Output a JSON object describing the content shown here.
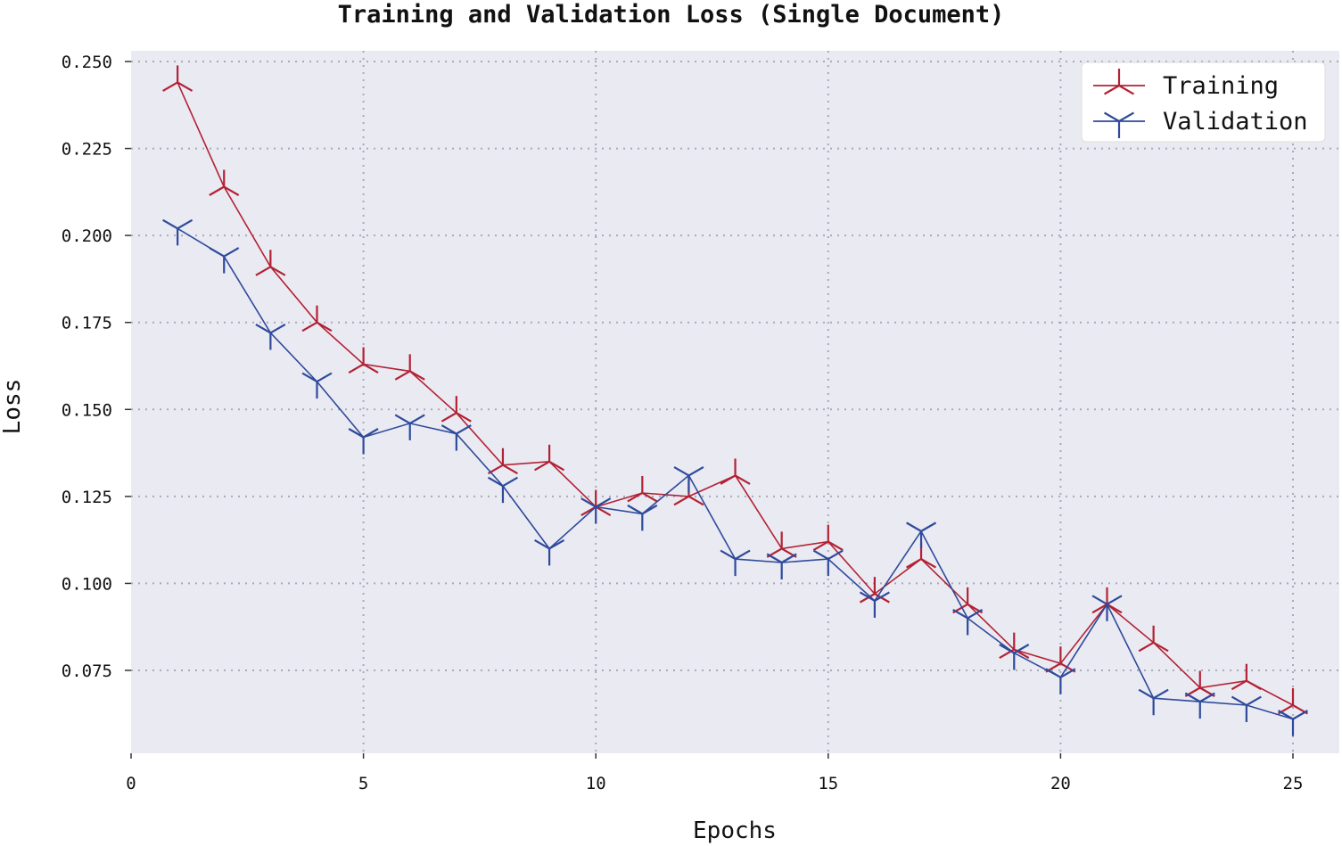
{
  "chart_data": {
    "type": "line",
    "title": "Training and Validation Loss (Single Document)",
    "xlabel": "Epochs",
    "ylabel": "Loss",
    "xlim": [
      0,
      26
    ],
    "ylim": [
      0.055,
      0.252
    ],
    "xticks": [
      0,
      5,
      10,
      15,
      20,
      25
    ],
    "yticks": [
      0.075,
      0.1,
      0.125,
      0.15,
      0.175,
      0.2,
      0.225,
      0.25
    ],
    "xtick_labels": [
      "0",
      "5",
      "10",
      "15",
      "20",
      "25"
    ],
    "ytick_labels": [
      "0.075",
      "0.100",
      "0.125",
      "0.150",
      "0.175",
      "0.200",
      "0.225",
      "0.250"
    ],
    "grid": true,
    "legend_position": "top-right",
    "x": [
      1,
      2,
      3,
      4,
      5,
      6,
      7,
      8,
      9,
      10,
      11,
      12,
      13,
      14,
      15,
      16,
      17,
      18,
      19,
      20,
      21,
      22,
      23,
      24,
      25
    ],
    "series": [
      {
        "name": "Training",
        "color": "#b22234",
        "marker": "tri-up",
        "values": [
          0.244,
          0.214,
          0.191,
          0.175,
          0.163,
          0.161,
          0.149,
          0.134,
          0.135,
          0.122,
          0.126,
          0.125,
          0.131,
          0.11,
          0.112,
          0.097,
          0.107,
          0.094,
          0.081,
          0.077,
          0.094,
          0.083,
          0.07,
          0.072,
          0.065
        ]
      },
      {
        "name": "Validation",
        "color": "#2e4a9b",
        "marker": "tri-down",
        "values": [
          0.202,
          0.194,
          0.172,
          0.158,
          0.142,
          0.146,
          0.143,
          0.128,
          0.11,
          0.122,
          0.12,
          0.131,
          0.107,
          0.106,
          0.107,
          0.095,
          0.115,
          0.09,
          0.08,
          0.073,
          0.094,
          0.067,
          0.066,
          0.065,
          0.061
        ]
      }
    ]
  }
}
